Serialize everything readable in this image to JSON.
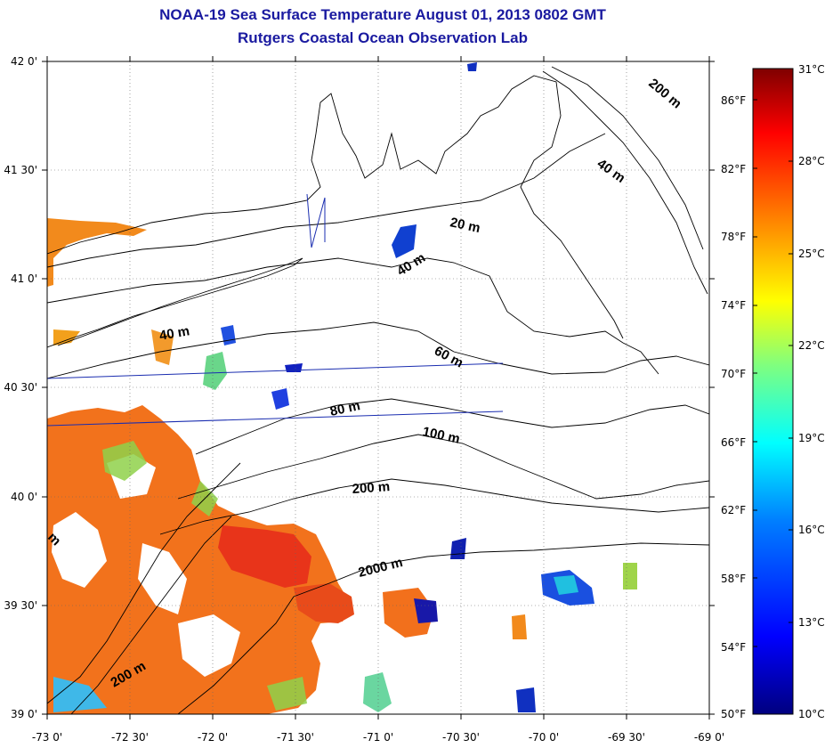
{
  "title": "NOAA-19 Sea Surface Temperature August 01, 2013 0802 GMT",
  "subtitle": "Rutgers Coastal Ocean Observation Lab",
  "map": {
    "lon_range": [
      -73.0,
      -69.0
    ],
    "lat_range": [
      39.0,
      42.0
    ],
    "lon_ticks": [
      "-73 0'",
      "-72 30'",
      "-72 0'",
      "-71 30'",
      "-71 0'",
      "-70 30'",
      "-70 0'",
      "-69 30'",
      "-69 0'"
    ],
    "lat_ticks": [
      "39 0'",
      "39 30'",
      "40 0'",
      "40 30'",
      "41 0'",
      "41 30'",
      "42 0'"
    ],
    "grid": true,
    "contour_labels": [
      "200 m",
      "40 m",
      "20 m",
      "40 m",
      "40 m",
      "60 m",
      "80 m",
      "100 m",
      "200 m",
      "2000 m",
      "200 m",
      "m"
    ]
  },
  "colorbar": {
    "celsius_labels": [
      "31°C",
      "28°C",
      "25°C",
      "22°C",
      "19°C",
      "16°C",
      "13°C",
      "10°C"
    ],
    "fahrenheit_labels": [
      "86°F",
      "82°F",
      "78°F",
      "74°F",
      "70°F",
      "66°F",
      "62°F",
      "58°F",
      "54°F",
      "50°F"
    ],
    "range_c": [
      10,
      31
    ],
    "colors": [
      "#00007f",
      "#0000ff",
      "#007fff",
      "#00ffff",
      "#7fff7f",
      "#ffff00",
      "#ff7f00",
      "#ff0000",
      "#7f0000"
    ]
  }
}
